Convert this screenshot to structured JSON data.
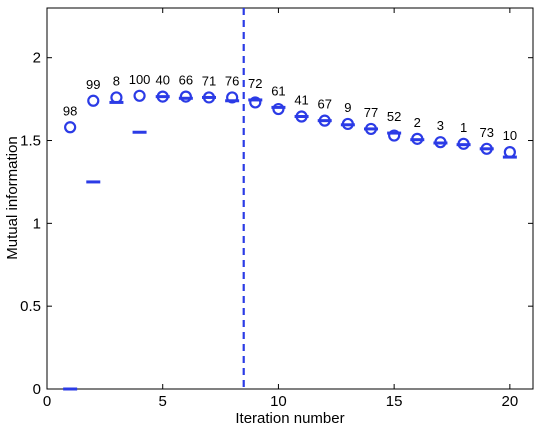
{
  "chart_data": {
    "type": "scatter",
    "title": "",
    "xlabel": "Iteration number",
    "ylabel": "Mutual information",
    "xlim": [
      0,
      21
    ],
    "ylim": [
      0,
      2.3
    ],
    "xticks": [
      0,
      5,
      10,
      15,
      20
    ],
    "yticks": [
      0,
      0.5,
      1,
      1.5,
      2
    ],
    "xtick_labels": [
      "0",
      "5",
      "10",
      "15",
      "20"
    ],
    "ytick_labels": [
      "0",
      "0.5",
      "1",
      "1.5",
      "2"
    ],
    "grid": false,
    "color": "#2b3be6",
    "vline_x": 8.5,
    "series": [
      {
        "marker": "circle",
        "x": [
          1,
          2,
          3,
          4,
          5,
          6,
          7,
          8,
          9,
          10,
          11,
          12,
          13,
          14,
          15,
          16,
          17,
          18,
          19,
          20
        ],
        "values": [
          1.58,
          1.74,
          1.76,
          1.77,
          1.765,
          1.765,
          1.76,
          1.76,
          1.73,
          1.69,
          1.645,
          1.62,
          1.6,
          1.57,
          1.53,
          1.51,
          1.49,
          1.48,
          1.45,
          1.43
        ]
      },
      {
        "marker": "dash",
        "x": [
          1,
          2,
          3,
          4,
          5,
          6,
          7,
          8,
          9,
          10,
          11,
          12,
          13,
          14,
          15,
          16,
          17,
          18,
          19,
          20
        ],
        "values": [
          0.0,
          1.25,
          1.73,
          1.55,
          1.765,
          1.755,
          1.76,
          1.74,
          1.745,
          1.7,
          1.645,
          1.62,
          1.595,
          1.57,
          1.545,
          1.505,
          1.485,
          1.475,
          1.45,
          1.4
        ]
      }
    ],
    "point_labels": [
      "98",
      "99",
      "8",
      "100",
      "40",
      "66",
      "71",
      "76",
      "72",
      "61",
      "41",
      "67",
      "9",
      "77",
      "52",
      "2",
      "3",
      "1",
      "73",
      "10"
    ]
  }
}
